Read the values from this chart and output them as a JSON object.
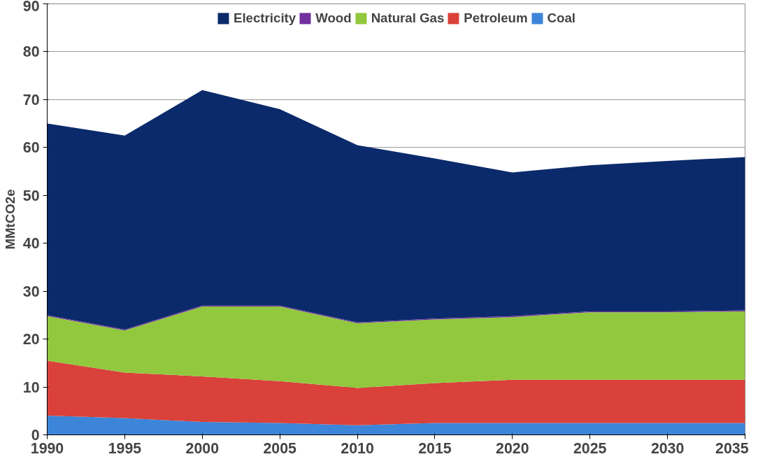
{
  "chart_data": {
    "type": "area",
    "stacked": true,
    "ylabel": "MMtCO2e",
    "x": [
      1990,
      1995,
      2000,
      2005,
      2010,
      2015,
      2020,
      2025,
      2030,
      2035
    ],
    "xlim": [
      1990,
      2035
    ],
    "xticks": [
      1990,
      1995,
      2000,
      2005,
      2010,
      2015,
      2020,
      2025,
      2030,
      2035
    ],
    "ylim": [
      0,
      90
    ],
    "yticks": [
      0,
      10,
      20,
      30,
      40,
      50,
      60,
      70,
      80,
      90
    ],
    "grid": "y",
    "legend": "top",
    "series": [
      {
        "name": "Coal",
        "color": "#3d85d8",
        "values": [
          4,
          3.5,
          2.7,
          2.5,
          2,
          2.5,
          2.5,
          2.5,
          2.5,
          2.5
        ]
      },
      {
        "name": "Petroleum",
        "color": "#d9413a",
        "values": [
          11.5,
          9.5,
          9.5,
          8.7,
          7.8,
          8.3,
          9,
          9,
          9,
          9
        ]
      },
      {
        "name": "Natural Gas",
        "color": "#92c83e",
        "values": [
          9.3,
          8.8,
          14.6,
          15.6,
          13.5,
          13.3,
          13.1,
          14.1,
          14.1,
          14.3
        ]
      },
      {
        "name": "Wood",
        "color": "#7030a0",
        "values": [
          0.2,
          0.2,
          0.2,
          0.2,
          0.2,
          0.2,
          0.2,
          0.2,
          0.2,
          0.2
        ]
      },
      {
        "name": "Electricity",
        "color": "#0b2a6b",
        "values": [
          40,
          40.5,
          45,
          41,
          37,
          33.4,
          30,
          30.5,
          31.4,
          32
        ]
      }
    ]
  }
}
